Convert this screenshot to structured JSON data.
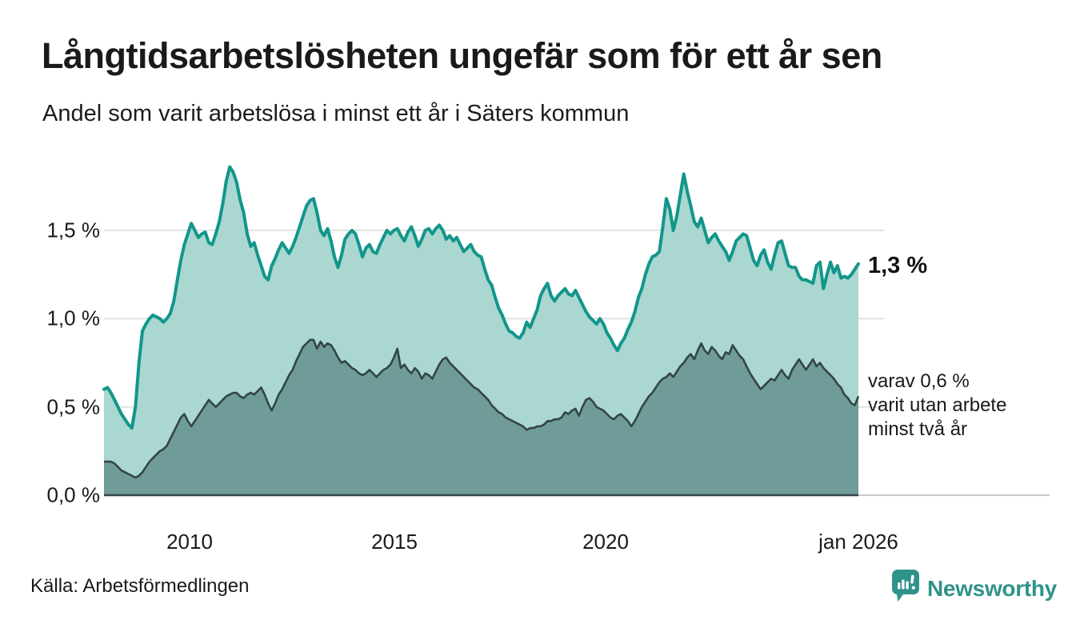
{
  "title": "Långtidsarbetslösheten ungefär som för ett år sen",
  "subtitle": "Andel som varit arbetslösa i minst ett år i Säters kommun",
  "source": "Källa: Arbetsförmedlingen",
  "branding": {
    "name": "Newsworthy",
    "icon": "bar-chart-speech-bubble-icon",
    "brand_color": "#2f938a"
  },
  "annotations": {
    "latest_total": "1,3 %",
    "secondary_lines": [
      "varav 0,6 %",
      "varit utan arbete",
      "minst två år"
    ]
  },
  "colors": {
    "total_line": "#12968b",
    "total_fill": "#abd7d1",
    "secondary_line": "#334548",
    "secondary_fill": "#6f9c98",
    "gridline": "#e2e2e2",
    "axis_light": "#c9c9c9",
    "text": "#1a1a1a"
  },
  "chart_data": {
    "type": "area",
    "title": "Långtidsarbetslösheten ungefär som för ett år sen",
    "subtitle": "Andel som varit arbetslösa i minst ett år i Säters kommun",
    "unit": "%",
    "frequency": "monthly",
    "x_start": "2008-01",
    "x_end": "2026-01",
    "x_tick_labels": [
      "2010",
      "2015",
      "2020",
      "jan 2026"
    ],
    "y_tick_labels": [
      "1,5 %",
      "1,0 %",
      "0,5 %",
      "0,0 %"
    ],
    "ylim": [
      0,
      1.95
    ],
    "grid": true,
    "legend_position": "right-annotations",
    "series": [
      {
        "name": "Andel som varit arbetslösa i minst ett år",
        "latest_value": 1.3,
        "stroke": "#12968b",
        "fill": "#abd7d1",
        "values": [
          0.6,
          0.61,
          0.58,
          0.54,
          0.5,
          0.46,
          0.43,
          0.4,
          0.38,
          0.5,
          0.75,
          0.93,
          0.97,
          1.0,
          1.02,
          1.01,
          1.0,
          0.98,
          1.0,
          1.03,
          1.1,
          1.22,
          1.33,
          1.42,
          1.48,
          1.54,
          1.5,
          1.46,
          1.48,
          1.49,
          1.43,
          1.42,
          1.48,
          1.55,
          1.65,
          1.78,
          1.86,
          1.83,
          1.77,
          1.67,
          1.6,
          1.48,
          1.41,
          1.43,
          1.36,
          1.3,
          1.24,
          1.22,
          1.3,
          1.34,
          1.39,
          1.43,
          1.4,
          1.37,
          1.41,
          1.46,
          1.52,
          1.58,
          1.64,
          1.67,
          1.68,
          1.6,
          1.5,
          1.47,
          1.51,
          1.44,
          1.35,
          1.29,
          1.36,
          1.45,
          1.48,
          1.5,
          1.48,
          1.42,
          1.35,
          1.4,
          1.42,
          1.38,
          1.37,
          1.42,
          1.46,
          1.5,
          1.48,
          1.5,
          1.51,
          1.47,
          1.44,
          1.49,
          1.52,
          1.47,
          1.41,
          1.45,
          1.5,
          1.51,
          1.48,
          1.51,
          1.53,
          1.5,
          1.45,
          1.47,
          1.44,
          1.46,
          1.42,
          1.38,
          1.4,
          1.42,
          1.38,
          1.36,
          1.35,
          1.28,
          1.22,
          1.19,
          1.12,
          1.06,
          1.02,
          0.97,
          0.93,
          0.92,
          0.9,
          0.89,
          0.92,
          0.98,
          0.95,
          1.0,
          1.05,
          1.13,
          1.17,
          1.2,
          1.13,
          1.1,
          1.13,
          1.15,
          1.17,
          1.14,
          1.13,
          1.16,
          1.12,
          1.08,
          1.04,
          1.01,
          0.99,
          0.97,
          1.0,
          0.97,
          0.92,
          0.89,
          0.85,
          0.82,
          0.86,
          0.89,
          0.94,
          0.98,
          1.04,
          1.12,
          1.17,
          1.25,
          1.31,
          1.35,
          1.36,
          1.38,
          1.52,
          1.68,
          1.62,
          1.5,
          1.58,
          1.7,
          1.82,
          1.72,
          1.64,
          1.55,
          1.52,
          1.57,
          1.5,
          1.43,
          1.46,
          1.48,
          1.44,
          1.41,
          1.38,
          1.33,
          1.38,
          1.44,
          1.46,
          1.48,
          1.47,
          1.4,
          1.33,
          1.3,
          1.36,
          1.39,
          1.32,
          1.28,
          1.36,
          1.43,
          1.44,
          1.37,
          1.3,
          1.29,
          1.29,
          1.24,
          1.22,
          1.22,
          1.21,
          1.2,
          1.3,
          1.32,
          1.17,
          1.25,
          1.32,
          1.26,
          1.3,
          1.23,
          1.24,
          1.23,
          1.25,
          1.28,
          1.31
        ]
      },
      {
        "name": "varav utan arbete minst två år",
        "latest_value": 0.6,
        "stroke": "#334548",
        "fill": "#6f9c98",
        "values": [
          0.19,
          0.19,
          0.19,
          0.18,
          0.16,
          0.14,
          0.13,
          0.12,
          0.11,
          0.1,
          0.11,
          0.13,
          0.16,
          0.19,
          0.21,
          0.23,
          0.25,
          0.26,
          0.28,
          0.32,
          0.36,
          0.4,
          0.44,
          0.46,
          0.42,
          0.39,
          0.42,
          0.45,
          0.48,
          0.51,
          0.54,
          0.52,
          0.5,
          0.52,
          0.54,
          0.56,
          0.57,
          0.58,
          0.58,
          0.56,
          0.55,
          0.57,
          0.58,
          0.57,
          0.59,
          0.61,
          0.57,
          0.52,
          0.48,
          0.52,
          0.57,
          0.6,
          0.64,
          0.68,
          0.71,
          0.76,
          0.8,
          0.84,
          0.86,
          0.88,
          0.88,
          0.83,
          0.87,
          0.84,
          0.86,
          0.85,
          0.82,
          0.78,
          0.75,
          0.76,
          0.74,
          0.72,
          0.71,
          0.69,
          0.68,
          0.69,
          0.71,
          0.69,
          0.67,
          0.69,
          0.71,
          0.72,
          0.74,
          0.78,
          0.83,
          0.72,
          0.74,
          0.71,
          0.69,
          0.72,
          0.7,
          0.66,
          0.69,
          0.68,
          0.66,
          0.7,
          0.74,
          0.77,
          0.78,
          0.75,
          0.73,
          0.71,
          0.69,
          0.67,
          0.65,
          0.63,
          0.61,
          0.6,
          0.58,
          0.56,
          0.54,
          0.51,
          0.49,
          0.47,
          0.46,
          0.44,
          0.43,
          0.42,
          0.41,
          0.4,
          0.39,
          0.37,
          0.38,
          0.38,
          0.39,
          0.39,
          0.4,
          0.42,
          0.42,
          0.43,
          0.43,
          0.44,
          0.47,
          0.46,
          0.48,
          0.49,
          0.45,
          0.5,
          0.54,
          0.55,
          0.53,
          0.5,
          0.49,
          0.48,
          0.46,
          0.44,
          0.43,
          0.45,
          0.46,
          0.44,
          0.42,
          0.39,
          0.42,
          0.46,
          0.5,
          0.53,
          0.56,
          0.58,
          0.61,
          0.64,
          0.66,
          0.67,
          0.69,
          0.67,
          0.7,
          0.73,
          0.75,
          0.78,
          0.8,
          0.77,
          0.82,
          0.86,
          0.82,
          0.8,
          0.84,
          0.82,
          0.79,
          0.77,
          0.81,
          0.8,
          0.85,
          0.82,
          0.79,
          0.77,
          0.73,
          0.69,
          0.66,
          0.63,
          0.6,
          0.62,
          0.64,
          0.66,
          0.65,
          0.68,
          0.71,
          0.68,
          0.66,
          0.71,
          0.74,
          0.77,
          0.74,
          0.71,
          0.74,
          0.77,
          0.73,
          0.75,
          0.72,
          0.7,
          0.68,
          0.66,
          0.63,
          0.61,
          0.57,
          0.55,
          0.52,
          0.51,
          0.56
        ]
      }
    ]
  }
}
